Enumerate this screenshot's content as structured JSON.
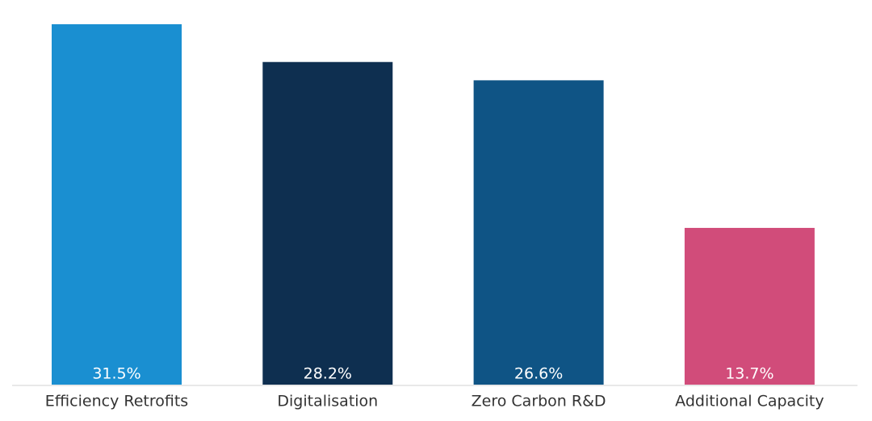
{
  "chart_data": {
    "type": "bar",
    "categories": [
      "Efficiency Retrofits",
      "Digitalisation",
      "Zero Carbon R&D",
      "Additional Capacity"
    ],
    "values": [
      31.5,
      28.2,
      26.6,
      13.7
    ],
    "value_labels": [
      "31.5%",
      "28.2%",
      "26.6%",
      "13.7%"
    ],
    "colors": [
      "#1a8fd1",
      "#0e2f50",
      "#0f5485",
      "#d14c7a"
    ]
  }
}
